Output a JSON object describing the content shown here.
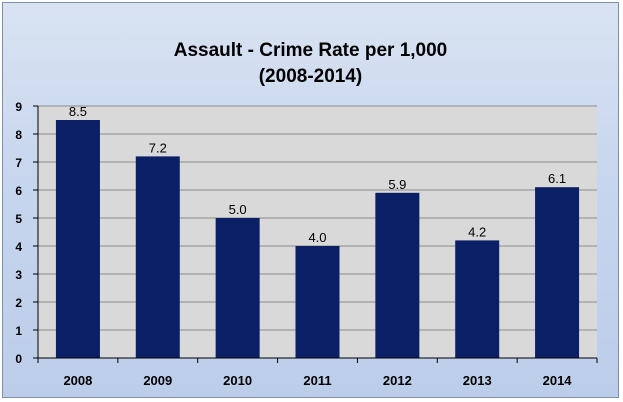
{
  "chart_data": {
    "type": "bar",
    "title_line1": "Assault - Crime Rate per 1,000",
    "title_line2": "(2008-2014)",
    "categories": [
      "2008",
      "2009",
      "2010",
      "2011",
      "2012",
      "2013",
      "2014"
    ],
    "values": [
      8.5,
      7.2,
      5.0,
      4.0,
      5.9,
      4.2,
      6.1
    ],
    "value_labels": [
      "8.5",
      "7.2",
      "5.0",
      "4.0",
      "5.9",
      "4.2",
      "6.1"
    ],
    "y_ticks": [
      "0",
      "1",
      "2",
      "3",
      "4",
      "5",
      "6",
      "7",
      "8",
      "9"
    ],
    "ylim": [
      0,
      9
    ],
    "grid": true,
    "legend": "none",
    "colors": {
      "bar": "#0a1f66",
      "plot_background": "#d9d9d9",
      "gridline": "#8c8c8c"
    }
  }
}
